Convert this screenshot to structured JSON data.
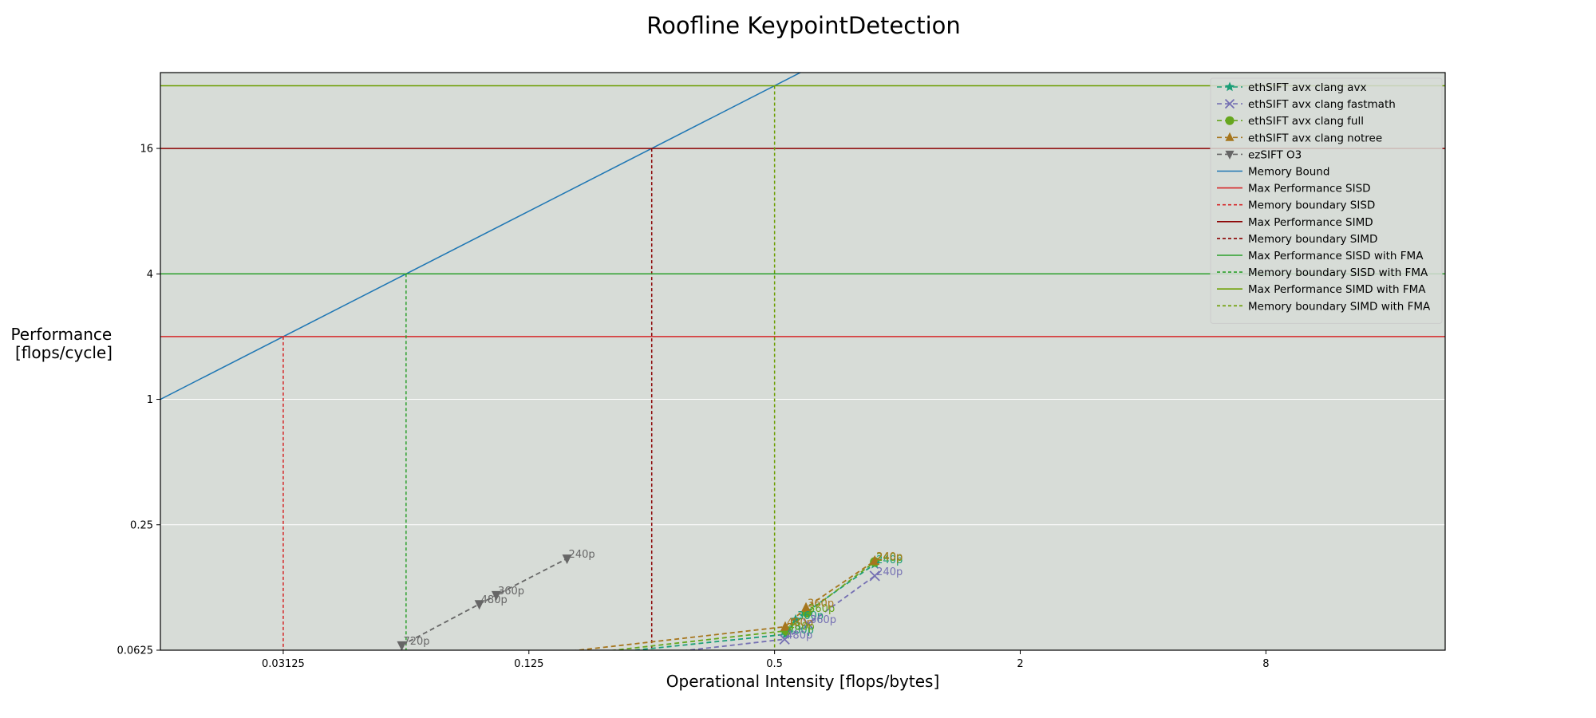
{
  "chart_data": {
    "type": "line",
    "title": "Roofline KeypointDetection",
    "xlabel": "Operational Intensity [flops/bytes]",
    "ylabel": [
      "Performance",
      "[flops/cycle]"
    ],
    "x_scale": "log2",
    "y_scale": "log2",
    "xlim": [
      0.015625,
      22
    ],
    "ylim": [
      0.0625,
      37
    ],
    "x_ticks": [
      0.03125,
      0.125,
      0.5,
      2,
      8
    ],
    "x_tick_labels": [
      "0.03125",
      "0.125",
      "0.5",
      "2",
      "8"
    ],
    "y_ticks": [
      0.0625,
      0.25,
      1,
      4,
      16
    ],
    "y_tick_labels": [
      "0.0625",
      "0.25",
      "1",
      "4",
      "16"
    ],
    "grid": true,
    "legend_position": "top-right",
    "background": "#d7dcd7",
    "series": [
      {
        "name": "ethSIFT avx clang avx",
        "color": "#1b9e77",
        "marker": "star",
        "style": "dashed",
        "x": [
          0.0415,
          0.533,
          0.563,
          0.88
        ],
        "y": [
          0.044,
          0.0745,
          0.0875,
          0.162
        ],
        "point_labels": [
          "",
          "480p",
          "360p",
          "240p"
        ]
      },
      {
        "name": "ethSIFT avx clang fastmath",
        "color": "#7570b3",
        "marker": "x",
        "style": "dashed",
        "x": [
          0.0415,
          0.529,
          0.605,
          0.88
        ],
        "y": [
          0.04,
          0.0705,
          0.0835,
          0.142
        ],
        "point_labels": [
          "",
          "480p",
          "360p",
          "240p"
        ]
      },
      {
        "name": "ethSIFT avx clang full",
        "color": "#66a61e",
        "marker": "circle",
        "style": "dashed",
        "x": [
          0.0415,
          0.535,
          0.6,
          0.88
        ],
        "y": [
          0.044,
          0.0775,
          0.0945,
          0.166
        ],
        "point_labels": [
          "",
          "480p",
          "360p",
          "240p"
        ]
      },
      {
        "name": "ethSIFT avx clang notree",
        "color": "#a6761d",
        "marker": "triangle-up",
        "style": "dashed",
        "x": [
          0.0415,
          0.531,
          0.597,
          0.88
        ],
        "y": [
          0.046,
          0.081,
          0.1,
          0.168
        ],
        "point_labels": [
          "",
          "480p",
          "360p",
          "240p"
        ]
      },
      {
        "name": "ezSIFT O3",
        "color": "#666666",
        "marker": "triangle-down",
        "style": "dashed",
        "x": [
          0.061,
          0.0945,
          0.104,
          0.155
        ],
        "y": [
          0.066,
          0.104,
          0.115,
          0.172
        ],
        "point_labels": [
          "720p",
          "480p",
          "360p",
          "240p"
        ]
      }
    ],
    "rooflines": [
      {
        "name": "Memory Bound",
        "type": "diagonal",
        "color": "#1f77b4",
        "style": "solid",
        "slope_bytes_per_cycle": 64
      },
      {
        "name": "Max Performance SISD",
        "type": "horizontal",
        "color": "#d62728",
        "style": "solid",
        "value": 2
      },
      {
        "name": "Memory boundary SISD",
        "type": "vertical",
        "color": "#d62728",
        "style": "dashed",
        "value": 0.03125
      },
      {
        "name": "Max Performance SIMD",
        "type": "horizontal",
        "color": "#8b0000",
        "style": "solid",
        "value": 16
      },
      {
        "name": "Memory boundary SIMD",
        "type": "vertical",
        "color": "#8b0000",
        "style": "dashed",
        "value": 0.25
      },
      {
        "name": "Max Performance SISD with FMA",
        "type": "horizontal",
        "color": "#2ca02c",
        "style": "solid",
        "value": 4
      },
      {
        "name": "Memory boundary SISD with FMA",
        "type": "vertical",
        "color": "#2ca02c",
        "style": "dashed",
        "value": 0.0625
      },
      {
        "name": "Max Performance SIMD with FMA",
        "type": "horizontal",
        "color": "#6b9e00",
        "style": "solid",
        "value": 32
      },
      {
        "name": "Memory boundary SIMD with FMA",
        "type": "vertical",
        "color": "#6b9e00",
        "style": "dashed",
        "value": 0.5
      }
    ]
  }
}
